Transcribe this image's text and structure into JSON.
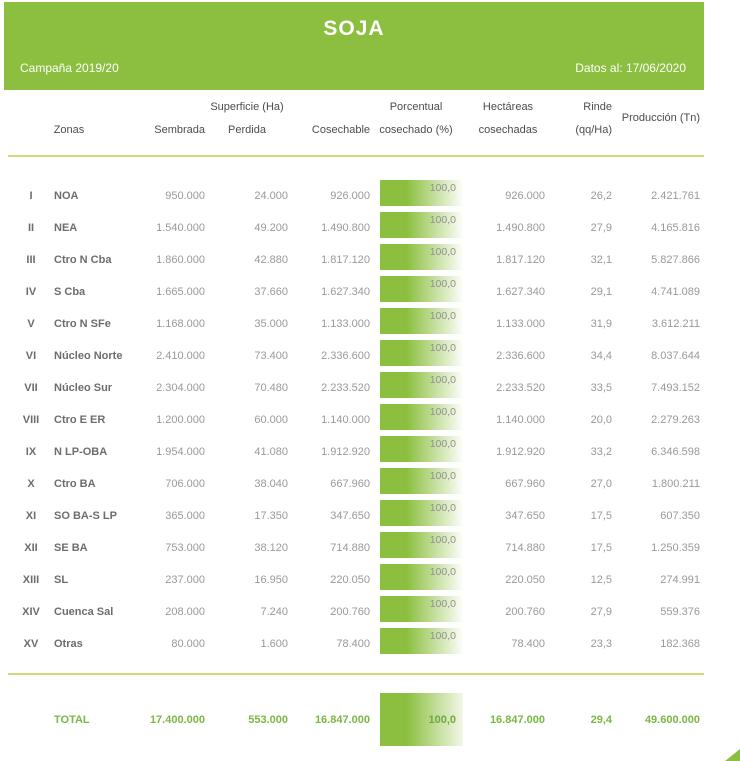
{
  "colors": {
    "accent_green": "#8CBF3F",
    "rule_green": "#CDDB79",
    "total_green": "#79B843"
  },
  "banner": {
    "title": "SOJA",
    "campaign": "Campaña 2019/20",
    "data_date": "Datos al: 17/06/2020"
  },
  "table": {
    "group_header": "Superficie (Ha)",
    "columns": {
      "zonas": "Zonas",
      "sembrada": "Sembrada",
      "perdida": "Perdida",
      "cosechable": "Cosechable",
      "porcentual_line1": "Porcentual",
      "porcentual_line2": "cosechado (%)",
      "hectareas_line1": "Hectáreas",
      "hectareas_line2": "cosechadas",
      "rinde_line1": "Rinde",
      "rinde_line2": "(qq/Ha)",
      "produccion": "Producción (Tn)"
    },
    "rows": [
      {
        "numeral": "I",
        "zona": "NOA",
        "sembrada": "950.000",
        "perdida": "24.000",
        "cosechable": "926.000",
        "porcentual": "100,0",
        "hectareas": "926.000",
        "rinde": "26,2",
        "produccion": "2.421.761"
      },
      {
        "numeral": "II",
        "zona": "NEA",
        "sembrada": "1.540.000",
        "perdida": "49.200",
        "cosechable": "1.490.800",
        "porcentual": "100,0",
        "hectareas": "1.490.800",
        "rinde": "27,9",
        "produccion": "4.165.816"
      },
      {
        "numeral": "III",
        "zona": "Ctro N Cba",
        "sembrada": "1.860.000",
        "perdida": "42.880",
        "cosechable": "1.817.120",
        "porcentual": "100,0",
        "hectareas": "1.817.120",
        "rinde": "32,1",
        "produccion": "5.827.866"
      },
      {
        "numeral": "IV",
        "zona": "S Cba",
        "sembrada": "1.665.000",
        "perdida": "37.660",
        "cosechable": "1.627.340",
        "porcentual": "100,0",
        "hectareas": "1.627.340",
        "rinde": "29,1",
        "produccion": "4.741.089"
      },
      {
        "numeral": "V",
        "zona": "Ctro N SFe",
        "sembrada": "1.168.000",
        "perdida": "35.000",
        "cosechable": "1.133.000",
        "porcentual": "100,0",
        "hectareas": "1.133.000",
        "rinde": "31,9",
        "produccion": "3.612.211"
      },
      {
        "numeral": "VI",
        "zona": "Núcleo Norte",
        "sembrada": "2.410.000",
        "perdida": "73.400",
        "cosechable": "2.336.600",
        "porcentual": "100,0",
        "hectareas": "2.336.600",
        "rinde": "34,4",
        "produccion": "8.037.644"
      },
      {
        "numeral": "VII",
        "zona": "Núcleo Sur",
        "sembrada": "2.304.000",
        "perdida": "70.480",
        "cosechable": "2.233.520",
        "porcentual": "100,0",
        "hectareas": "2.233.520",
        "rinde": "33,5",
        "produccion": "7.493.152"
      },
      {
        "numeral": "VIII",
        "zona": "Ctro E ER",
        "sembrada": "1.200.000",
        "perdida": "60.000",
        "cosechable": "1.140.000",
        "porcentual": "100,0",
        "hectareas": "1.140.000",
        "rinde": "20,0",
        "produccion": "2.279.263"
      },
      {
        "numeral": "IX",
        "zona": "N LP-OBA",
        "sembrada": "1.954.000",
        "perdida": "41.080",
        "cosechable": "1.912.920",
        "porcentual": "100,0",
        "hectareas": "1.912.920",
        "rinde": "33,2",
        "produccion": "6.346.598"
      },
      {
        "numeral": "X",
        "zona": "Ctro BA",
        "sembrada": "706.000",
        "perdida": "38.040",
        "cosechable": "667.960",
        "porcentual": "100,0",
        "hectareas": "667.960",
        "rinde": "27,0",
        "produccion": "1.800.211"
      },
      {
        "numeral": "XI",
        "zona": "SO BA-S LP",
        "sembrada": "365.000",
        "perdida": "17.350",
        "cosechable": "347.650",
        "porcentual": "100,0",
        "hectareas": "347.650",
        "rinde": "17,5",
        "produccion": "607.350"
      },
      {
        "numeral": "XII",
        "zona": "SE BA",
        "sembrada": "753.000",
        "perdida": "38.120",
        "cosechable": "714.880",
        "porcentual": "100,0",
        "hectareas": "714.880",
        "rinde": "17,5",
        "produccion": "1.250.359"
      },
      {
        "numeral": "XIII",
        "zona": "SL",
        "sembrada": "237.000",
        "perdida": "16.950",
        "cosechable": "220.050",
        "porcentual": "100,0",
        "hectareas": "220.050",
        "rinde": "12,5",
        "produccion": "274.991"
      },
      {
        "numeral": "XIV",
        "zona": "Cuenca Sal",
        "sembrada": "208.000",
        "perdida": "7.240",
        "cosechable": "200.760",
        "porcentual": "100,0",
        "hectareas": "200.760",
        "rinde": "27,9",
        "produccion": "559.376"
      },
      {
        "numeral": "XV",
        "zona": "Otras",
        "sembrada": "80.000",
        "perdida": "1.600",
        "cosechable": "78.400",
        "porcentual": "100,0",
        "hectareas": "78.400",
        "rinde": "23,3",
        "produccion": "182.368"
      }
    ],
    "total": {
      "label": "TOTAL",
      "sembrada": "17.400.000",
      "perdida": "553.000",
      "cosechable": "16.847.000",
      "porcentual": "100,0",
      "hectareas": "16.847.000",
      "rinde": "29,4",
      "produccion": "49.600.000"
    }
  }
}
